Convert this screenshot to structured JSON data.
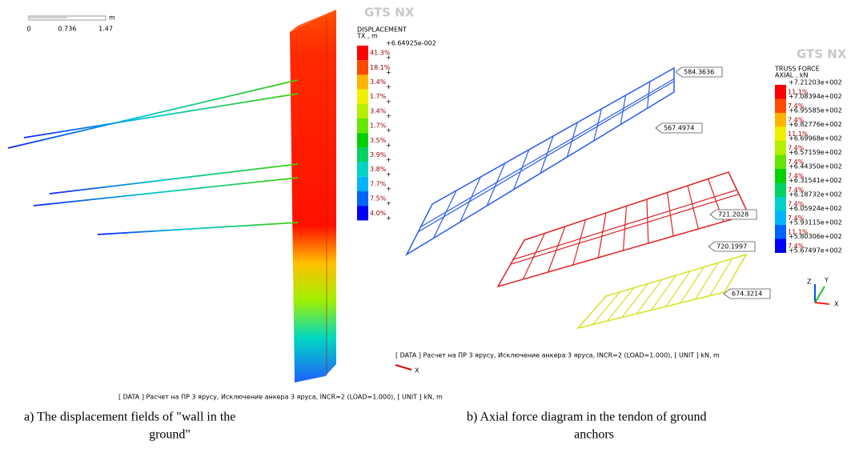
{
  "left_panel": {
    "scale_labels": [
      "0",
      "0.736",
      "1.47"
    ],
    "scale_unit": "m",
    "logo": "GTS NX",
    "legend": {
      "title": "DISPLACEMENT",
      "subtitle": "TX , m",
      "labels": [
        "+6.64925e-002",
        "+",
        "+",
        "+",
        "+",
        "+",
        "+",
        "+",
        "+",
        "+",
        "+",
        "+",
        "+"
      ],
      "percents": [
        "41.3%",
        "18.1%",
        "3.4%",
        "1.7%",
        "3.4%",
        "1.7%",
        "3.5%",
        "3.9%",
        "3.8%",
        "7.7%",
        "7.5%",
        "4.0%"
      ],
      "colors": [
        "#ff0000",
        "#ff4a00",
        "#ffb400",
        "#f0f000",
        "#b4f000",
        "#64e600",
        "#00d200",
        "#00d264",
        "#00d2c8",
        "#00b4ff",
        "#0064ff",
        "#0000ff"
      ]
    },
    "status": "[ DATA ] Расчет на ПР 3 ярусу,  Исключение анкера 3 яруса,  INCR=2 (LOAD=1.000),  [ UNIT ]   kN,  m",
    "caption": [
      "a) The displacement fields of \"wall in the",
      "ground\""
    ]
  },
  "right_panel": {
    "logo": "GTS NX",
    "legend": {
      "title": "TRUSS FORCE",
      "subtitle": "AXIAL , kN",
      "labels": [
        "+7.21203e+002",
        "+7.08394e+002",
        "+6.95585e+002",
        "+6.82776e+002",
        "+6.69968e+002",
        "+6.57159e+002",
        "+6.44350e+002",
        "+6.31541e+002",
        "+6.18732e+002",
        "+6.05924e+002",
        "+5.93115e+002",
        "+5.80306e+002",
        "+5.67497e+002"
      ],
      "percents": [
        "11.1%",
        "7.4%",
        "7.4%",
        "11.1%",
        "7.4%",
        "7.4%",
        "7.4%",
        "7.4%",
        "7.4%",
        "7.4%",
        "11.1%",
        "7.4%"
      ],
      "colors": [
        "#ff0000",
        "#ff4a00",
        "#ffb400",
        "#f0f000",
        "#b4f000",
        "#64e600",
        "#00d200",
        "#00d264",
        "#00d2c8",
        "#00b4ff",
        "#0064ff",
        "#0000ff"
      ]
    },
    "annotations": [
      "584.3636",
      "567.4974",
      "721.2028",
      "720.1997",
      "674.3214"
    ],
    "status": "[ DATA ] Расчет на ПР 3 ярусу,  Исключение анкера 3 яруса,  INCR=2 (LOAD=1.000),  [ UNIT ]   kN,  m",
    "axis_labels": [
      "Z",
      "Y",
      "X"
    ],
    "status_axis": "X",
    "caption": [
      "b) Axial force diagram in the tendon of ground",
      "anchors"
    ]
  }
}
